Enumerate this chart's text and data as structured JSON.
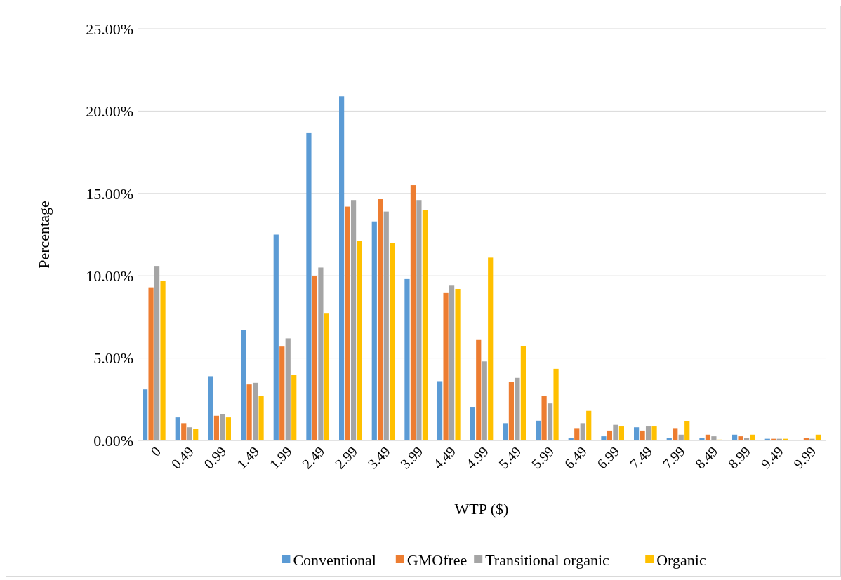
{
  "chart_data": {
    "type": "bar",
    "xlabel": "WTP ($)",
    "ylabel": "Percentage",
    "categories": [
      "0",
      "0.49",
      "0.99",
      "1.49",
      "1.99",
      "2.49",
      "2.99",
      "3.49",
      "3.99",
      "4.49",
      "4.99",
      "5.49",
      "5.99",
      "6.49",
      "6.99",
      "7.49",
      "7.99",
      "8.49",
      "8.99",
      "9.49",
      "9.99"
    ],
    "series": [
      {
        "name": "Conventional",
        "color": "#5b9bd5",
        "values": [
          3.1,
          1.4,
          3.9,
          6.7,
          12.5,
          18.7,
          20.9,
          13.3,
          9.8,
          3.6,
          2.0,
          1.05,
          1.2,
          0.15,
          0.25,
          0.8,
          0.15,
          0.15,
          0.35,
          0.1,
          0
        ]
      },
      {
        "name": "GMOfree",
        "color": "#ed7d31",
        "values": [
          9.3,
          1.05,
          1.5,
          3.4,
          5.7,
          10.0,
          14.2,
          14.65,
          15.5,
          8.95,
          6.1,
          3.55,
          2.7,
          0.75,
          0.6,
          0.6,
          0.75,
          0.35,
          0.25,
          0.1,
          0.15
        ]
      },
      {
        "name": "Transitional organic",
        "color": "#a5a5a5",
        "values": [
          10.6,
          0.8,
          1.6,
          3.5,
          6.2,
          10.5,
          14.6,
          13.9,
          14.6,
          9.4,
          4.8,
          3.8,
          2.25,
          1.05,
          0.95,
          0.85,
          0.35,
          0.25,
          0.15,
          0.1,
          0.1
        ]
      },
      {
        "name": "Organic",
        "color": "#ffc000",
        "values": [
          9.7,
          0.7,
          1.4,
          2.7,
          4.0,
          7.7,
          12.1,
          12.0,
          14.0,
          9.2,
          11.1,
          5.75,
          4.35,
          1.8,
          0.85,
          0.85,
          1.15,
          0.05,
          0.35,
          0.1,
          0.35
        ]
      }
    ],
    "ylim": [
      0,
      25
    ],
    "yticks": [
      {
        "value": 0,
        "label": "0.00%"
      },
      {
        "value": 5,
        "label": "5.00%"
      },
      {
        "value": 10,
        "label": "10.00%"
      },
      {
        "value": 15,
        "label": "15.00%"
      },
      {
        "value": 20,
        "label": "20.00%"
      },
      {
        "value": 25,
        "label": "25.00%"
      }
    ],
    "grid": "y",
    "legend": "bottom"
  }
}
